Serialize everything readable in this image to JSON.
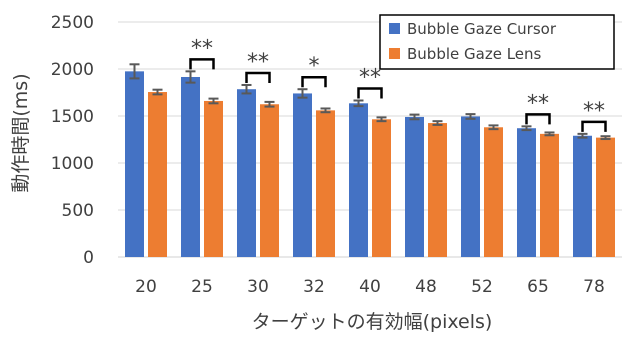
{
  "chart_data": {
    "type": "bar",
    "categories": [
      "20",
      "25",
      "30",
      "32",
      "40",
      "48",
      "52",
      "65",
      "78"
    ],
    "series": [
      {
        "name": "Bubble Gaze Cursor",
        "color": "#4472C4",
        "values": [
          1975,
          1915,
          1785,
          1740,
          1635,
          1490,
          1495,
          1370,
          1290
        ],
        "errors": [
          75,
          60,
          45,
          45,
          30,
          25,
          25,
          20,
          20
        ]
      },
      {
        "name": "Bubble Gaze Lens",
        "color": "#ED7D31",
        "values": [
          1755,
          1660,
          1625,
          1560,
          1465,
          1425,
          1380,
          1310,
          1270
        ],
        "errors": [
          25,
          25,
          25,
          20,
          20,
          20,
          20,
          15,
          15
        ]
      }
    ],
    "significance": [
      {
        "category": "25",
        "label": "**"
      },
      {
        "category": "30",
        "label": "**"
      },
      {
        "category": "32",
        "label": "*"
      },
      {
        "category": "40",
        "label": "**"
      },
      {
        "category": "65",
        "label": "**"
      },
      {
        "category": "78",
        "label": "**"
      }
    ],
    "ylabel": "動作時間(ms)",
    "xlabel": "ターゲットの有効幅(pixels)",
    "ylim": [
      0,
      2500
    ],
    "yticks": [
      0,
      500,
      1000,
      1500,
      2000,
      2500
    ],
    "grid": true,
    "legend_position": "top-right"
  }
}
